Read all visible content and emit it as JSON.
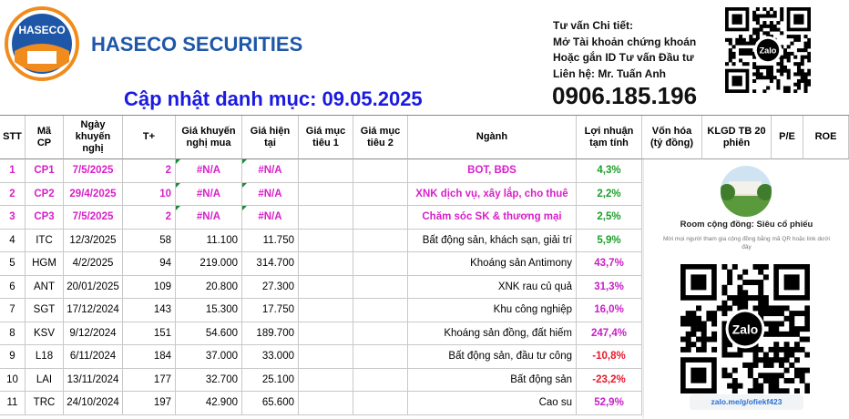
{
  "header": {
    "logo_text": "HASECO",
    "company": "HASECO SECURITIES",
    "title": "Cập nhật danh mục: 09.05.2025",
    "contact_lines": [
      "Tư vấn Chi tiết:",
      "Mở Tài khoản chứng khoán",
      "Hoặc gắn ID Tư vấn Đầu tư",
      "Liên hệ: Mr. Tuấn Anh"
    ],
    "phone": "0906.185.196",
    "qr_label": "Zalo"
  },
  "table": {
    "columns": [
      "STT",
      "Mã CP",
      "Ngày khuyến nghị",
      "T+",
      "Giá khuyến nghị mua",
      "Giá hiện tại",
      "Giá mục tiêu 1",
      "Giá mục tiêu 2",
      "Ngành",
      "Lợi nhuận tạm tính",
      "Vốn hóa (tỷ đồng)",
      "KLGD TB 20 phiên",
      "P/E",
      "ROE"
    ],
    "rows": [
      {
        "stt": 1,
        "code": "CP1",
        "date": "7/5/2025",
        "days": 2,
        "buy_price": "#N/A",
        "current_price": "#N/A",
        "sector": "BOT, BĐS",
        "profit": "4,3%"
      },
      {
        "stt": 2,
        "code": "CP2",
        "date": "29/4/2025",
        "days": 10,
        "buy_price": "#N/A",
        "current_price": "#N/A",
        "sector": "XNK dịch vụ, xây lắp, cho thuê",
        "profit": "2,2%"
      },
      {
        "stt": 3,
        "code": "CP3",
        "date": "7/5/2025",
        "days": 2,
        "buy_price": "#N/A",
        "current_price": "#N/A",
        "sector": "Chăm sóc SK & thương mại",
        "profit": "2,5%"
      },
      {
        "stt": 4,
        "code": "ITC",
        "date": "12/3/2025",
        "days": 58,
        "buy_price": "11.100",
        "current_price": "11.750",
        "sector": "Bất động sản, khách sạn, giải trí",
        "profit": "5,9%"
      },
      {
        "stt": 5,
        "code": "HGM",
        "date": "4/2/2025",
        "days": 94,
        "buy_price": "219.000",
        "current_price": "314.700",
        "sector": "Khoáng sản Antimony",
        "profit": "43,7%"
      },
      {
        "stt": 6,
        "code": "ANT",
        "date": "20/01/2025",
        "days": 109,
        "buy_price": "20.800",
        "current_price": "27.300",
        "sector": "XNK rau củ quả",
        "profit": "31,3%"
      },
      {
        "stt": 7,
        "code": "SGT",
        "date": "17/12/2024",
        "days": 143,
        "buy_price": "15.300",
        "current_price": "17.750",
        "sector": "Khu công nghiệp",
        "profit": "16,0%"
      },
      {
        "stt": 8,
        "code": "KSV",
        "date": "9/12/2024",
        "days": 151,
        "buy_price": "54.600",
        "current_price": "189.700",
        "sector": "Khoáng sản đồng, đất hiếm",
        "profit": "247,4%"
      },
      {
        "stt": 9,
        "code": "L18",
        "date": "6/11/2024",
        "days": 184,
        "buy_price": "37.000",
        "current_price": "33.000",
        "sector": "Bất động sản, đầu tư công",
        "profit": "-10,8%"
      },
      {
        "stt": 10,
        "code": "LAI",
        "date": "13/11/2024",
        "days": 177,
        "buy_price": "32.700",
        "current_price": "25.100",
        "sector": "Bất động sản",
        "profit": "-23,2%"
      },
      {
        "stt": 11,
        "code": "TRC",
        "date": "24/10/2024",
        "days": 197,
        "buy_price": "42.900",
        "current_price": "65.600",
        "sector": "Cao su",
        "profit": "52,9%"
      }
    ]
  },
  "community": {
    "title": "Room cộng đồng: Siêu cổ phiếu",
    "description": "Mời mọi người tham gia cộng đồng bằng mã QR hoặc link dưới đây",
    "qr_label": "Zalo",
    "link": "zalo.me/g/ofiekf423"
  }
}
